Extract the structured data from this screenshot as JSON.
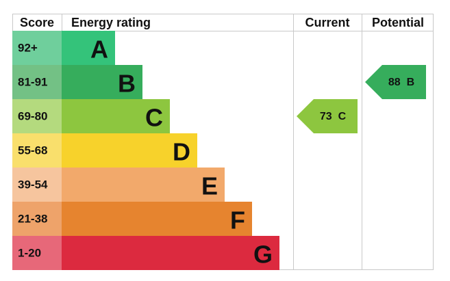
{
  "headers": {
    "score": "Score",
    "rating": "Energy rating",
    "current": "Current",
    "potential": "Potential"
  },
  "bands": [
    {
      "score": "92+",
      "letter": "A",
      "color": "#34c37a",
      "light": "#6fcf9c"
    },
    {
      "score": "81-91",
      "letter": "B",
      "color": "#36ad5c",
      "light": "#73c185"
    },
    {
      "score": "69-80",
      "letter": "C",
      "color": "#8dc63f",
      "light": "#b4da7e"
    },
    {
      "score": "55-68",
      "letter": "D",
      "color": "#f7d22b",
      "light": "#f9df6c"
    },
    {
      "score": "39-54",
      "letter": "E",
      "color": "#f2a96b",
      "light": "#f6c59e"
    },
    {
      "score": "21-38",
      "letter": "F",
      "color": "#e6842f",
      "light": "#eea36a"
    },
    {
      "score": "1-20",
      "letter": "G",
      "color": "#dc2a3f",
      "light": "#e76879"
    }
  ],
  "current": {
    "value": 73,
    "letter": "C"
  },
  "potential": {
    "value": 88,
    "letter": "B"
  }
}
